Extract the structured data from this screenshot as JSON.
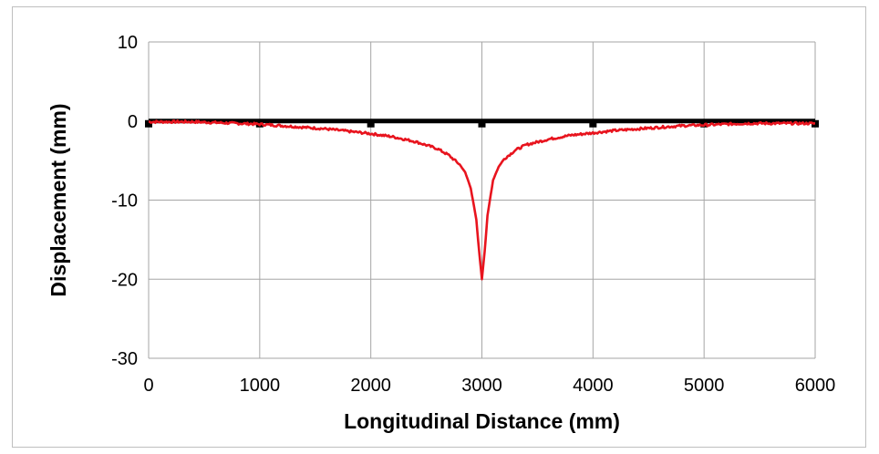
{
  "chart_data": {
    "type": "line",
    "title": "",
    "xlabel": "Longitudinal Distance (mm)",
    "ylabel": "Displacement (mm)",
    "xlim": [
      0,
      6000
    ],
    "ylim": [
      -30,
      10
    ],
    "x_ticks": [
      0,
      1000,
      2000,
      3000,
      4000,
      5000,
      6000
    ],
    "y_ticks": [
      10,
      0,
      -10,
      -20,
      -30
    ],
    "grid": true,
    "legend": "none",
    "series": [
      {
        "color": "#000000",
        "style": "thick line with square markers",
        "x": [
          0,
          1000,
          2000,
          3000,
          4000,
          5000,
          6000
        ],
        "y": [
          0,
          0,
          0,
          0,
          0,
          0,
          0
        ]
      },
      {
        "color": "#e8141e",
        "style": "noisy line",
        "x": [
          0,
          200,
          400,
          600,
          800,
          1000,
          1200,
          1400,
          1600,
          1800,
          2000,
          2200,
          2400,
          2600,
          2700,
          2800,
          2850,
          2900,
          2950,
          2975,
          3000,
          3025,
          3050,
          3100,
          3150,
          3200,
          3300,
          3400,
          3600,
          3800,
          4000,
          4200,
          4400,
          4600,
          4800,
          5000,
          5200,
          5400,
          5600,
          5800,
          6000
        ],
        "y": [
          -0.1,
          -0.1,
          -0.1,
          -0.2,
          -0.3,
          -0.4,
          -0.6,
          -0.8,
          -1.0,
          -1.3,
          -1.6,
          -2.0,
          -2.6,
          -3.5,
          -4.3,
          -5.5,
          -6.5,
          -8.5,
          -12.5,
          -16.5,
          -20,
          -16.5,
          -12.0,
          -7.5,
          -5.8,
          -4.8,
          -3.7,
          -3.0,
          -2.3,
          -1.8,
          -1.5,
          -1.2,
          -1.0,
          -0.8,
          -0.6,
          -0.5,
          -0.4,
          -0.3,
          -0.3,
          -0.3,
          -0.3
        ]
      }
    ]
  }
}
